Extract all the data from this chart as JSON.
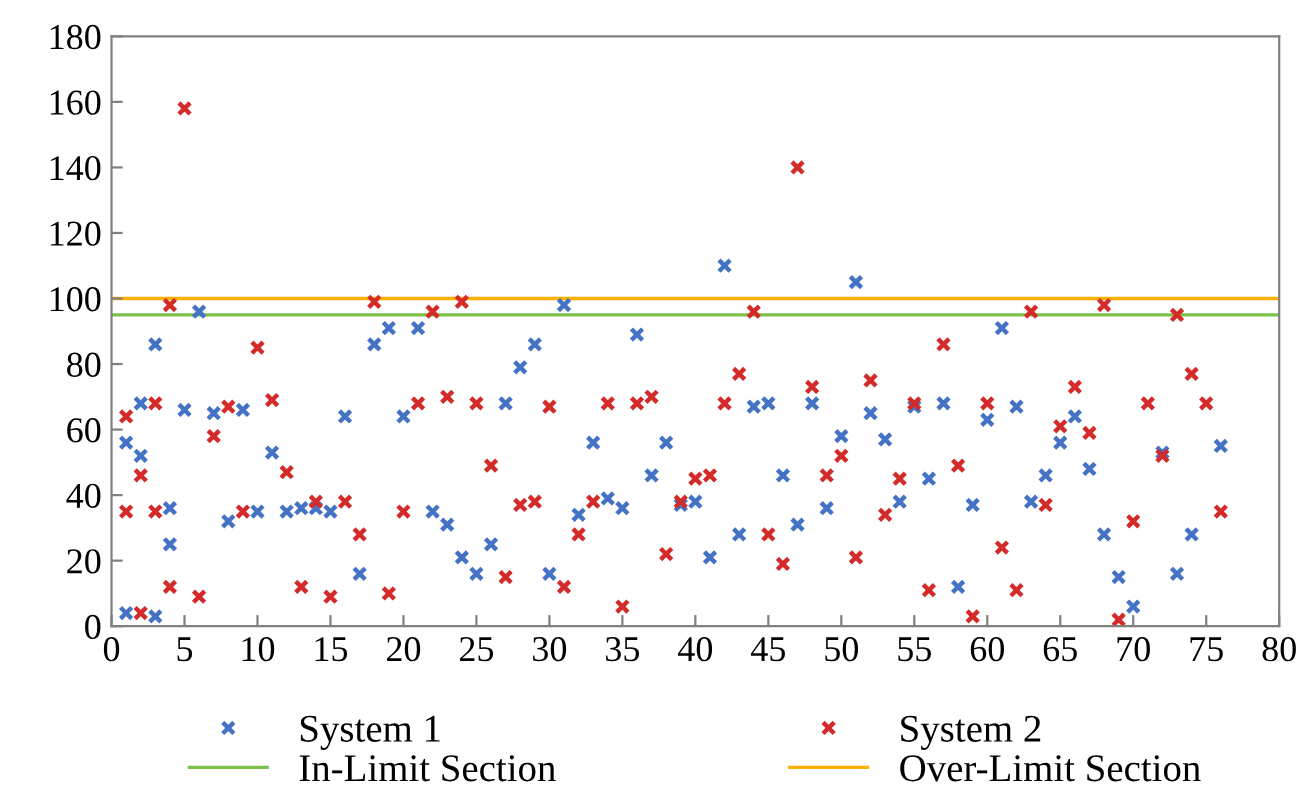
{
  "chart_data": {
    "type": "scatter",
    "series": [
      {
        "name": "System 1",
        "color": "#4472c4",
        "x": [
          1,
          1,
          2,
          2,
          3,
          3,
          4,
          4,
          5,
          6,
          7,
          8,
          9,
          10,
          11,
          12,
          13,
          14,
          15,
          16,
          17,
          18,
          19,
          20,
          21,
          22,
          23,
          24,
          25,
          26,
          27,
          28,
          29,
          30,
          31,
          32,
          33,
          34,
          35,
          36,
          37,
          38,
          39,
          40,
          41,
          42,
          43,
          44,
          45,
          46,
          47,
          48,
          49,
          50,
          51,
          52,
          53,
          54,
          55,
          56,
          57,
          58,
          59,
          60,
          61,
          62,
          63,
          64,
          65,
          66,
          67,
          68,
          69,
          70,
          72,
          73,
          74,
          76
        ],
        "values": [
          56,
          4,
          68,
          52,
          3,
          86,
          36,
          25,
          66,
          96,
          65,
          32,
          66,
          35,
          53,
          35,
          36,
          36,
          35,
          64,
          16,
          86,
          91,
          64,
          91,
          35,
          31,
          21,
          16,
          25,
          68,
          79,
          86,
          16,
          98,
          34,
          56,
          39,
          36,
          89,
          46,
          56,
          37,
          38,
          21,
          110,
          28,
          67,
          68,
          46,
          31,
          68,
          36,
          58,
          105,
          65,
          57,
          38,
          67,
          45,
          68,
          12,
          37,
          63,
          91,
          67,
          38,
          46,
          56,
          64,
          48,
          28,
          15,
          6,
          53,
          16,
          28,
          55
        ]
      },
      {
        "name": "System 2",
        "color": "#d42a2a",
        "x": [
          1,
          1,
          2,
          2,
          3,
          3,
          4,
          4,
          5,
          6,
          7,
          8,
          9,
          10,
          11,
          12,
          13,
          14,
          15,
          16,
          17,
          18,
          19,
          20,
          21,
          22,
          23,
          24,
          25,
          26,
          27,
          28,
          29,
          30,
          31,
          32,
          33,
          34,
          35,
          36,
          37,
          38,
          39,
          40,
          41,
          42,
          43,
          44,
          45,
          46,
          47,
          48,
          49,
          50,
          51,
          52,
          53,
          54,
          55,
          56,
          57,
          58,
          59,
          60,
          61,
          62,
          63,
          64,
          65,
          66,
          67,
          68,
          69,
          70,
          71,
          72,
          73,
          74,
          75,
          76
        ],
        "values": [
          64,
          35,
          46,
          4,
          68,
          35,
          98,
          12,
          158,
          9,
          58,
          67,
          35,
          85,
          69,
          47,
          12,
          38,
          9,
          38,
          28,
          99,
          10,
          35,
          68,
          96,
          70,
          99,
          68,
          49,
          15,
          37,
          38,
          67,
          12,
          28,
          38,
          68,
          6,
          68,
          70,
          22,
          38,
          45,
          46,
          68,
          77,
          96,
          28,
          19,
          140,
          73,
          46,
          52,
          21,
          75,
          34,
          45,
          68,
          11,
          86,
          49,
          3,
          68,
          24,
          11,
          96,
          37,
          61,
          73,
          59,
          98,
          2,
          32,
          68,
          52,
          95,
          77,
          68,
          35
        ]
      }
    ],
    "ref_lines": [
      {
        "axis": "y",
        "value": 95,
        "label": "In-Limit Section",
        "color": "#7cc24a"
      },
      {
        "axis": "y",
        "value": 100,
        "label": "Over-Limit Section",
        "color": "#ffb000"
      }
    ],
    "marker": "cross",
    "xlim": [
      0,
      80
    ],
    "xticks": [
      0,
      5,
      10,
      15,
      20,
      25,
      30,
      35,
      40,
      45,
      50,
      55,
      60,
      65,
      70,
      75,
      80
    ],
    "ylim": [
      0,
      180
    ],
    "yticks": [
      0,
      20,
      40,
      60,
      80,
      100,
      120,
      140,
      160,
      180
    ],
    "grid": false,
    "legend": "bottom"
  }
}
